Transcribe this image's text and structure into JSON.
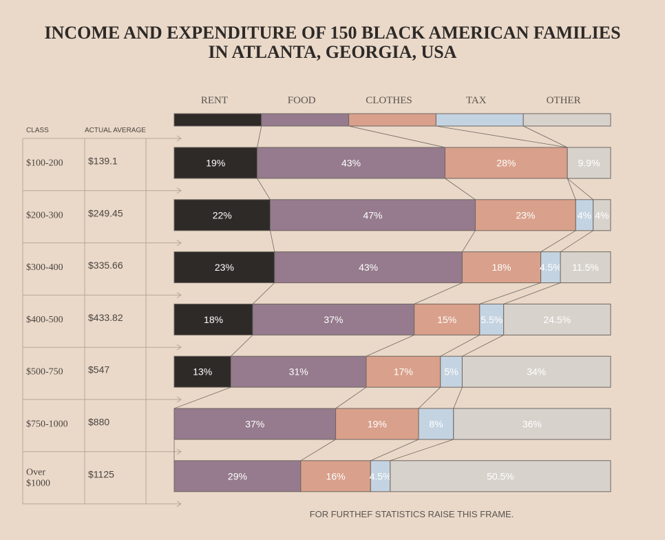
{
  "chart_data": {
    "type": "bar",
    "stacked": "100%",
    "title": [
      "INCOME AND EXPENDITURE OF 150 BLACK AMERICAN FAMILIES",
      "IN ATLANTA, GEORGIA, USA"
    ],
    "footer": "FOR FURTHEF STATISTICS RAISE THIS FRAME.",
    "table_headers": {
      "class": "CLASS",
      "average": "ACTUAL AVERAGE"
    },
    "categories_legend": [
      {
        "label": "RENT",
        "color": "#2e2a28"
      },
      {
        "label": "FOOD",
        "color": "#957b8d"
      },
      {
        "label": "CLOTHES",
        "color": "#d9a08b"
      },
      {
        "label": "TAX",
        "color": "#c4d3e1"
      },
      {
        "label": "OTHER",
        "color": "#d8d2cc"
      }
    ],
    "rows": [
      {
        "class": [
          "$100-200"
        ],
        "average": "$139.1",
        "values": [
          19,
          43,
          28,
          0,
          9.9
        ],
        "labels": [
          "19%",
          "43%",
          "28%",
          "",
          "9.9%"
        ]
      },
      {
        "class": [
          "$200-300"
        ],
        "average": "$249.45",
        "values": [
          22,
          47,
          23,
          4,
          4
        ],
        "labels": [
          "22%",
          "47%",
          "23%",
          "4%",
          "4%"
        ]
      },
      {
        "class": [
          "$300-400"
        ],
        "average": "$335.66",
        "values": [
          23,
          43,
          18,
          4.5,
          11.5
        ],
        "labels": [
          "23%",
          "43%",
          "18%",
          "4.5%",
          "11.5%"
        ]
      },
      {
        "class": [
          "$400-500"
        ],
        "average": "$433.82",
        "values": [
          18,
          37,
          15,
          5.5,
          24.5
        ],
        "labels": [
          "18%",
          "37%",
          "15%",
          "5.5%",
          "24.5%"
        ]
      },
      {
        "class": [
          "$500-750"
        ],
        "average": "$547",
        "values": [
          13,
          31,
          17,
          5,
          34
        ],
        "labels": [
          "13%",
          "31%",
          "17%",
          "5%",
          "34%"
        ]
      },
      {
        "class": [
          "$750-1000"
        ],
        "average": "$880",
        "values": [
          0,
          37,
          19,
          8,
          36
        ],
        "labels": [
          "",
          "37%",
          "19%",
          "8%",
          "36%"
        ]
      },
      {
        "class": [
          "Over",
          "$1000"
        ],
        "average": "$1125",
        "values": [
          0,
          29,
          16,
          4.5,
          50.5
        ],
        "labels": [
          "",
          "29%",
          "16%",
          "4.5%",
          "50.5%"
        ]
      }
    ]
  }
}
